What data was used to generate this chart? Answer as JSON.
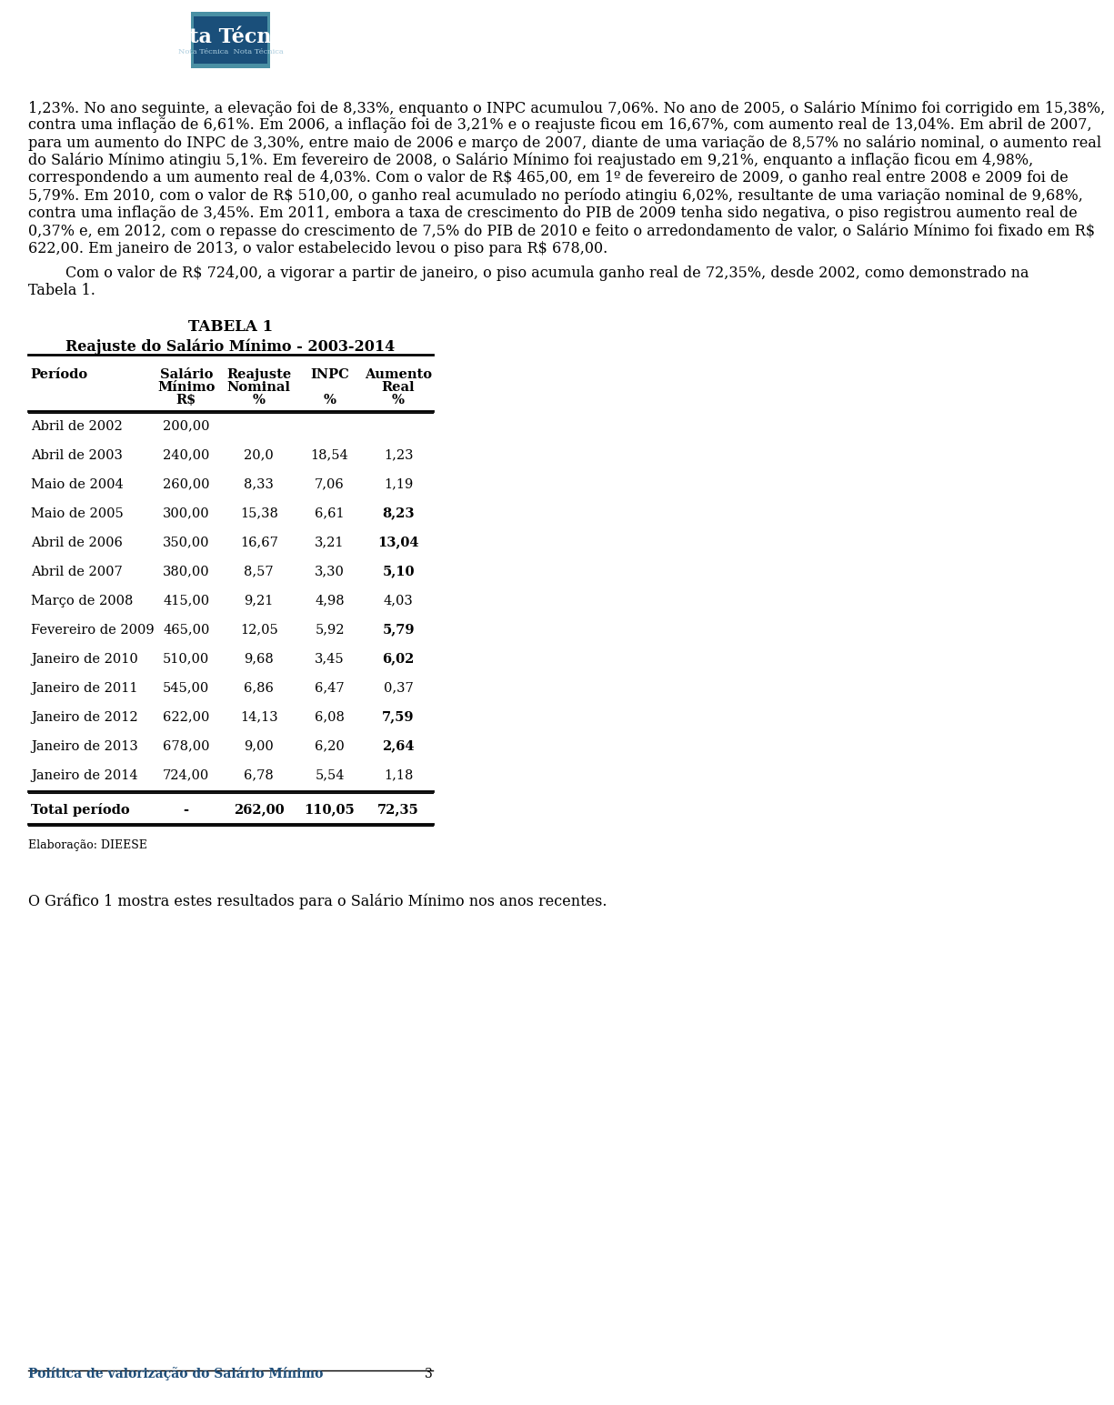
{
  "header_title": "Nota Técnica",
  "page_bg": "#ffffff",
  "text_color": "#000000",
  "footer_text": "Política de valorização do Salário Mínimo",
  "footer_page": "3",
  "footer_color": "#1f4e79",
  "paragraphs": [
    "1,23%. No ano seguinte, a elevação foi de 8,33%, enquanto o INPC acumulou 7,06%. No ano de 2005, o Salário Mínimo foi corrigido em 15,38%, contra uma inflação de 6,61%. Em 2006, a inflação foi de 3,21% e o reajuste ficou em 16,67%, com aumento real de 13,04%. Em abril de 2007, para um aumento do INPC de 3,30%, entre maio de 2006 e março de 2007, diante de uma variação de 8,57% no salário nominal, o aumento real do Salário Mínimo atingiu 5,1%. Em fevereiro de 2008, o Salário Mínimo foi reajustado em 9,21%, enquanto a inflação ficou em 4,98%, correspondendo a um aumento real de 4,03%. Com o valor de R$ 465,00, em 1º de fevereiro de 2009, o ganho real entre 2008 e 2009 foi de 5,79%. Em 2010, com o valor de R$ 510,00, o ganho real acumulado no período atingiu 6,02%, resultante de uma variação nominal de 9,68%, contra uma inflação de 3,45%. Em 2011, embora a taxa de crescimento do PIB de 2009 tenha sido negativa, o piso registrou aumento real de 0,37% e, em 2012, com o repasse do crescimento de 7,5% do PIB de 2010 e feito o arredondamento de valor, o Salário Mínimo foi fixado em R$ 622,00. Em janeiro de 2013, o valor estabelecido levou o piso para R$ 678,00.",
    "Com o valor de R$ 724,00, a vigorar a partir de janeiro, o piso acumula ganho real de 72,35%, desde 2002, como demonstrado na Tabela 1.",
    "O Gráfico 1 mostra estes resultados para o Salário Mínimo nos anos recentes."
  ],
  "table_title1": "TABELA 1",
  "table_title2": "Reajuste do Salário Mínimo - 2003-2014",
  "col_headers": [
    [
      "Período",
      "",
      ""
    ],
    [
      "Salário\nMínimo\nR$",
      "",
      ""
    ],
    [
      "Reajuste\nNominal\n%",
      "",
      ""
    ],
    [
      "INPC\n\n%",
      "",
      ""
    ],
    [
      "Aumento\nReal\n%",
      "",
      ""
    ]
  ],
  "col_header_labels": [
    "Período",
    "Salário\nMínimo\nR$",
    "Reajuste\nNominal\n%",
    "INPC\n%",
    "Aumento\nReal\n%"
  ],
  "rows": [
    [
      "Abril de 2002",
      "200,00",
      "",
      "",
      ""
    ],
    [
      "Abril de 2003",
      "240,00",
      "20,0",
      "18,54",
      "1,23"
    ],
    [
      "Maio de 2004",
      "260,00",
      "8,33",
      "7,06",
      "1,19"
    ],
    [
      "Maio de 2005",
      "300,00",
      "15,38",
      "6,61",
      "8,23"
    ],
    [
      "Abril de 2006",
      "350,00",
      "16,67",
      "3,21",
      "13,04"
    ],
    [
      "Abril de 2007",
      "380,00",
      "8,57",
      "3,30",
      "5,10"
    ],
    [
      "Março de 2008",
      "415,00",
      "9,21",
      "4,98",
      "4,03"
    ],
    [
      "Fevereiro de 2009",
      "465,00",
      "12,05",
      "5,92",
      "5,79"
    ],
    [
      "Janeiro de 2010",
      "510,00",
      "9,68",
      "3,45",
      "6,02"
    ],
    [
      "Janeiro de 2011",
      "545,00",
      "6,86",
      "6,47",
      "0,37"
    ],
    [
      "Janeiro de 2012",
      "622,00",
      "14,13",
      "6,08",
      "7,59"
    ],
    [
      "Janeiro de 2013",
      "678,00",
      "9,00",
      "6,20",
      "2,64"
    ],
    [
      "Janeiro de 2014",
      "724,00",
      "6,78",
      "5,54",
      "1,18"
    ]
  ],
  "total_row": [
    "Total período",
    "-",
    "262,00",
    "110,05",
    "72,35"
  ],
  "bold_aumento_rows": [
    3,
    4,
    5,
    7,
    8,
    10,
    11
  ],
  "fonte": "Elaboração: DIEESE",
  "font_size_body": 11.5,
  "font_size_table": 10.5,
  "font_size_footer": 10,
  "indent_para2": true
}
